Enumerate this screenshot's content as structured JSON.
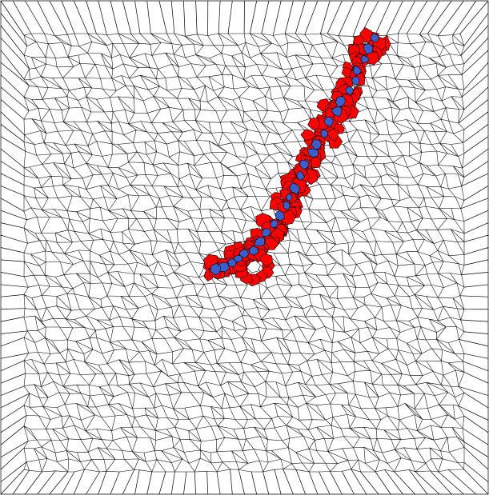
{
  "diagram": {
    "type": "voronoi-mesh",
    "colors": {
      "background": "#ffffff",
      "edge": "#000000",
      "highlight_primary": "#ff0000",
      "highlight_secondary": "#3a5fcd"
    }
  }
}
